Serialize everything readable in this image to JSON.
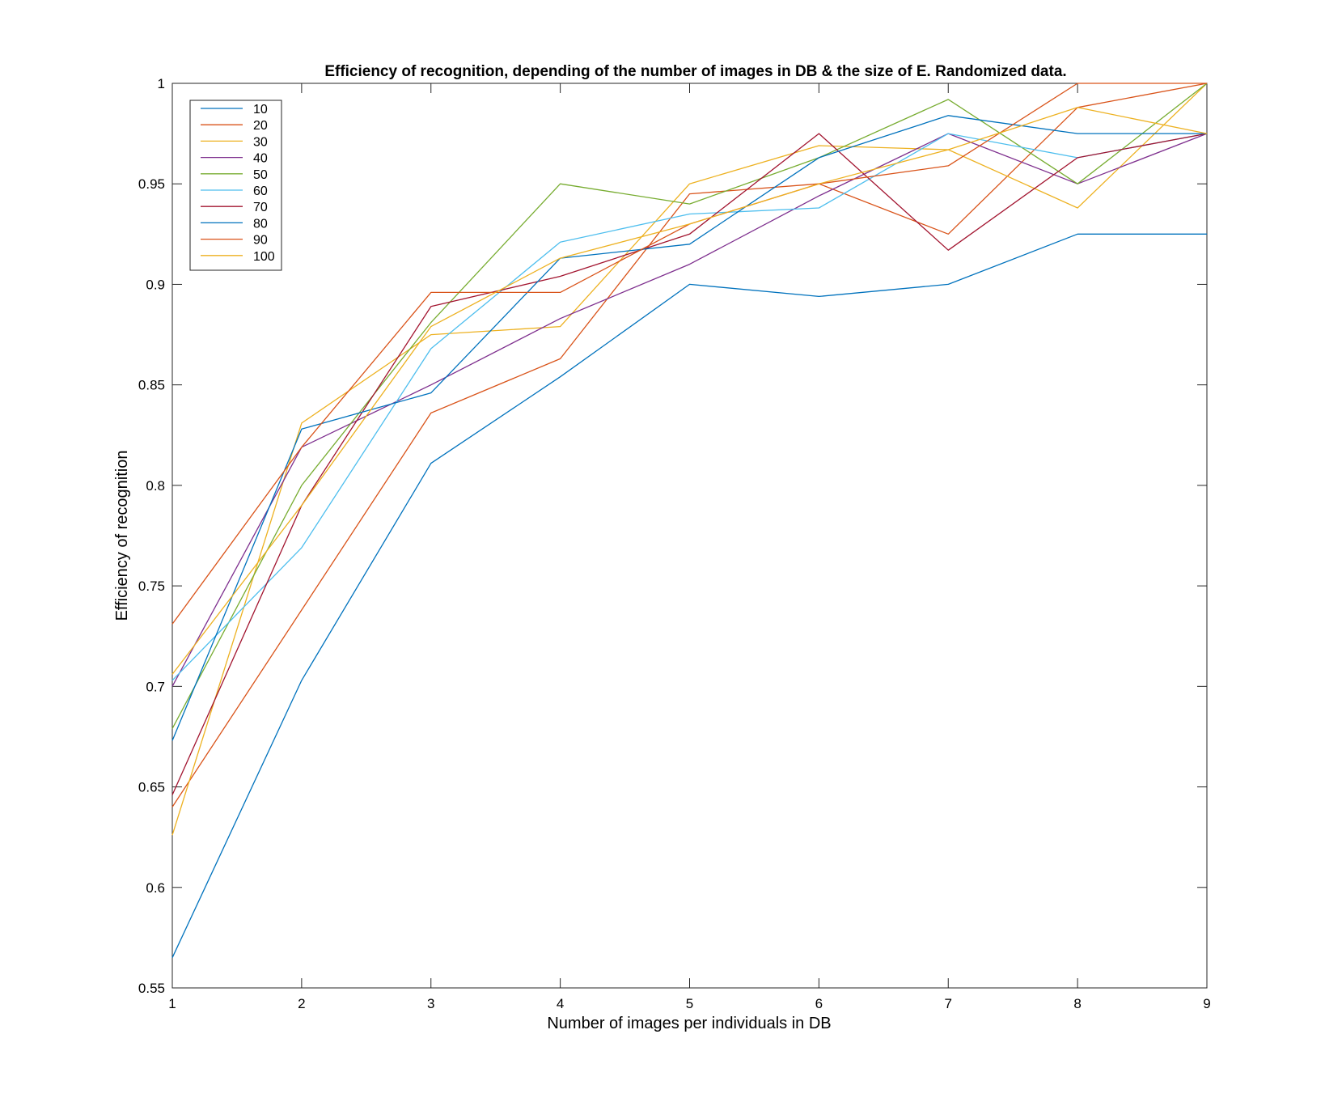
{
  "chart_data": {
    "type": "line",
    "title": "Efficiency of recognition, depending of the number of images in DB & the size of E. Randomized data.",
    "xlabel": "Number of images per individuals in DB",
    "ylabel": "Efficiency of recognition",
    "xlim": [
      1,
      9
    ],
    "ylim": [
      0.55,
      1
    ],
    "xticks": [
      "1",
      "2",
      "3",
      "4",
      "5",
      "6",
      "7",
      "8",
      "9"
    ],
    "yticks": [
      "0.55",
      "0.6",
      "0.65",
      "0.7",
      "0.75",
      "0.8",
      "0.85",
      "0.9",
      "0.95",
      "1"
    ],
    "grid": false,
    "legend_position": "top-left",
    "x": [
      1,
      2,
      3,
      4,
      5,
      6,
      7,
      8,
      9
    ],
    "series": [
      {
        "name": "10",
        "color": "#0072BD",
        "values": [
          0.565,
          0.703,
          0.811,
          0.854,
          0.9,
          0.894,
          0.9,
          0.925,
          0.925
        ]
      },
      {
        "name": "20",
        "color": "#D95319",
        "values": [
          0.64,
          0.738,
          0.836,
          0.863,
          0.945,
          0.95,
          0.925,
          0.988,
          1.0
        ]
      },
      {
        "name": "30",
        "color": "#EDB120",
        "values": [
          0.626,
          0.831,
          0.875,
          0.879,
          0.95,
          0.969,
          0.967,
          0.938,
          1.0
        ]
      },
      {
        "name": "40",
        "color": "#7E2F8E",
        "values": [
          0.7,
          0.819,
          0.85,
          0.883,
          0.91,
          0.944,
          0.975,
          0.95,
          0.975
        ]
      },
      {
        "name": "50",
        "color": "#77AC30",
        "values": [
          0.679,
          0.8,
          0.881,
          0.95,
          0.94,
          0.963,
          0.992,
          0.95,
          1.0
        ]
      },
      {
        "name": "60",
        "color": "#4DBEEE",
        "values": [
          0.703,
          0.769,
          0.868,
          0.921,
          0.935,
          0.938,
          0.975,
          0.963,
          0.975
        ]
      },
      {
        "name": "70",
        "color": "#A2142F",
        "values": [
          0.646,
          0.79,
          0.889,
          0.904,
          0.925,
          0.975,
          0.917,
          0.963,
          0.975
        ]
      },
      {
        "name": "80",
        "color": "#0072BD",
        "values": [
          0.673,
          0.828,
          0.846,
          0.913,
          0.92,
          0.963,
          0.984,
          0.975,
          0.975
        ]
      },
      {
        "name": "90",
        "color": "#D95319",
        "values": [
          0.731,
          0.819,
          0.896,
          0.896,
          0.93,
          0.95,
          0.959,
          1.0,
          1.0
        ]
      },
      {
        "name": "100",
        "color": "#EDB120",
        "values": [
          0.706,
          0.79,
          0.879,
          0.913,
          0.93,
          0.95,
          0.967,
          0.988,
          0.975
        ]
      }
    ]
  }
}
